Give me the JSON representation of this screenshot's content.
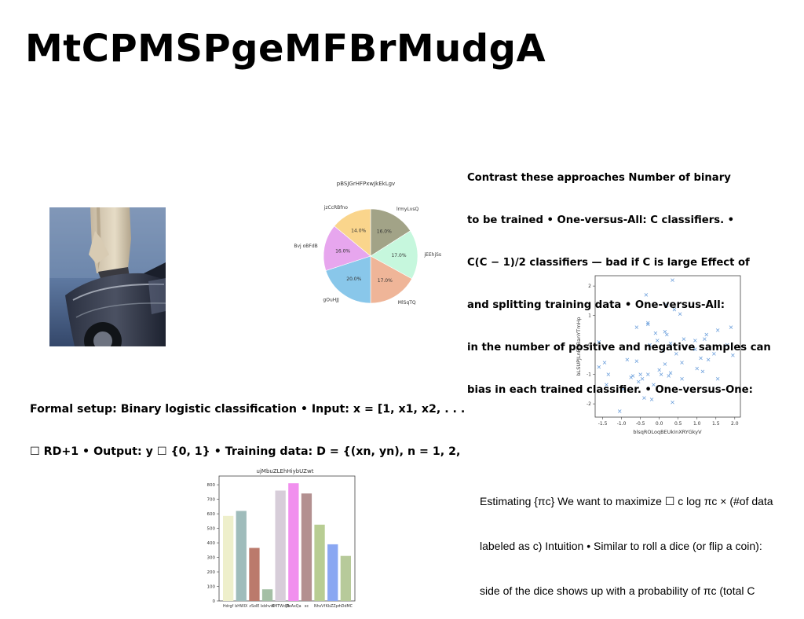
{
  "slide": {
    "title": "MtCPMSPgeMFBrMudgA",
    "text_right_top": [
      "Contrast these approaches Number of binary",
      "to be trained • One-versus-All: C classifiers. •",
      "C(C − 1)/2 classifiers — bad if C is large Effect of",
      "and splitting training data • One-versus-All:",
      "in the number of positive and negative samples can",
      "bias in each trained classifier. • One-versus-One:"
    ],
    "text_left_mid": [
      "Formal setup: Binary logistic classification • Input: x = [1, x1, x2, . . .",
      "☐ RD+1 • Output: y ☐ {0, 1} • Training data: D = {(xn, yn), n = 1, 2,"
    ],
    "text_right_bottom": [
      "Estimating {πc} We want to maximize ☐ c log πc × (#of data",
      "labeled as c) Intuition • Similar to roll a dice (or flip a coin):",
      "side of the dice shows up with a probability of πc (total C"
    ]
  },
  "chart_data": [
    {
      "type": "pie",
      "title": "pBSJGrHFPxwJkEkLgv",
      "slices": [
        {
          "label": "lrmyLvsQ",
          "value": 16.0,
          "pct_text": "16.0%",
          "color": "#a2a387"
        },
        {
          "label": "jEEhjSs",
          "value": 17.0,
          "pct_text": "17.0%",
          "color": "#c6f7dd"
        },
        {
          "label": "MlSqTQ",
          "value": 17.0,
          "pct_text": "17.0%",
          "color": "#efb598"
        },
        {
          "label": "gOuHJJ",
          "value": 20.0,
          "pct_text": "20.0%",
          "color": "#89c7ea"
        },
        {
          "label": "Bvj oBFdB",
          "value": 16.0,
          "pct_text": "16.0%",
          "color": "#e7a6ee"
        },
        {
          "label": "jzCcRBfno",
          "value": 14.0,
          "pct_text": "14.0%",
          "color": "#fad58c"
        }
      ]
    },
    {
      "type": "scatter",
      "xlabel": "blsqROLoqBEUkInXRYGkyV",
      "ylabel": "bLSUPJLnFtrBanYTmHp",
      "xlim": [
        -1.7,
        2.15
      ],
      "ylim": [
        -2.45,
        2.35
      ],
      "xticks": [
        -1.5,
        -1.0,
        -0.5,
        0.0,
        0.5,
        1.0,
        1.5,
        2.0
      ],
      "yticks": [
        -2,
        -1,
        0,
        1,
        2
      ],
      "marker_color": "#6a9edb",
      "points": [
        [
          -1.6,
          0.1
        ],
        [
          -1.45,
          -0.6
        ],
        [
          -1.4,
          -1.35
        ],
        [
          -1.35,
          -1.0
        ],
        [
          -1.6,
          -0.75
        ],
        [
          -1.05,
          -2.25
        ],
        [
          -0.95,
          -1.5
        ],
        [
          -0.85,
          -0.5
        ],
        [
          -0.75,
          -1.1
        ],
        [
          -0.7,
          -1.05
        ],
        [
          -0.6,
          -0.55
        ],
        [
          -0.55,
          -1.25
        ],
        [
          -0.5,
          -1.0
        ],
        [
          -0.45,
          -1.15
        ],
        [
          -0.4,
          -1.8
        ],
        [
          -0.3,
          -1.0
        ],
        [
          -0.3,
          0.7
        ],
        [
          -0.3,
          0.75
        ],
        [
          -0.25,
          0.0
        ],
        [
          -0.2,
          -1.85
        ],
        [
          -0.15,
          -1.35
        ],
        [
          -0.1,
          0.4
        ],
        [
          -0.05,
          0.15
        ],
        [
          0.0,
          -0.85
        ],
        [
          0.05,
          -1.0
        ],
        [
          0.1,
          -0.2
        ],
        [
          0.15,
          -0.65
        ],
        [
          0.15,
          0.45
        ],
        [
          0.2,
          0.35
        ],
        [
          0.2,
          1.35
        ],
        [
          0.25,
          -1.05
        ],
        [
          0.3,
          0.05
        ],
        [
          0.3,
          -0.95
        ],
        [
          0.35,
          2.2
        ],
        [
          0.35,
          -1.95
        ],
        [
          0.4,
          1.2
        ],
        [
          0.45,
          -0.3
        ],
        [
          0.55,
          1.05
        ],
        [
          0.6,
          -0.6
        ],
        [
          0.6,
          -1.15
        ],
        [
          0.65,
          0.2
        ],
        [
          -0.35,
          1.7
        ],
        [
          -0.6,
          0.6
        ],
        [
          0.95,
          0.15
        ],
        [
          0.95,
          -0.15
        ],
        [
          1.0,
          -0.8
        ],
        [
          1.1,
          -0.45
        ],
        [
          1.15,
          -0.9
        ],
        [
          1.2,
          0.2
        ],
        [
          1.25,
          0.35
        ],
        [
          1.3,
          -0.5
        ],
        [
          1.45,
          -0.3
        ],
        [
          1.55,
          0.5
        ],
        [
          1.55,
          -1.15
        ],
        [
          1.8,
          0.0
        ],
        [
          1.9,
          0.6
        ],
        [
          1.95,
          -0.35
        ]
      ]
    },
    {
      "type": "bar",
      "title": "ujMbuZLEhHiybUZwt",
      "categories": [
        "Hdrgf",
        "bHWIX",
        "zSoIE",
        "Ixbhvdl",
        "XMTWdjB",
        "DeAxQa",
        "xc",
        "NhsVf",
        "KbZZpr",
        "hDdMC"
      ],
      "values": [
        585,
        620,
        365,
        80,
        760,
        810,
        740,
        525,
        390,
        310
      ],
      "colors": [
        "#eeefcb",
        "#9fbcbb",
        "#bb7a6c",
        "#a4bfa5",
        "#d7cdd9",
        "#f18fee",
        "#b39090",
        "#b8cd93",
        "#8aa7f2",
        "#b7ca9a"
      ],
      "ylim": [
        0,
        860
      ],
      "yticks": [
        0,
        100,
        200,
        300,
        400,
        500,
        600,
        700,
        800
      ],
      "xtick_text": [
        "Hdrgf",
        "bHWIX",
        "zSoIE",
        "Ixbhvdl",
        "XMTWdjB",
        "DeAxQa",
        "xc",
        "NhsVf",
        "KbZZpr",
        "hDdMC"
      ]
    }
  ]
}
